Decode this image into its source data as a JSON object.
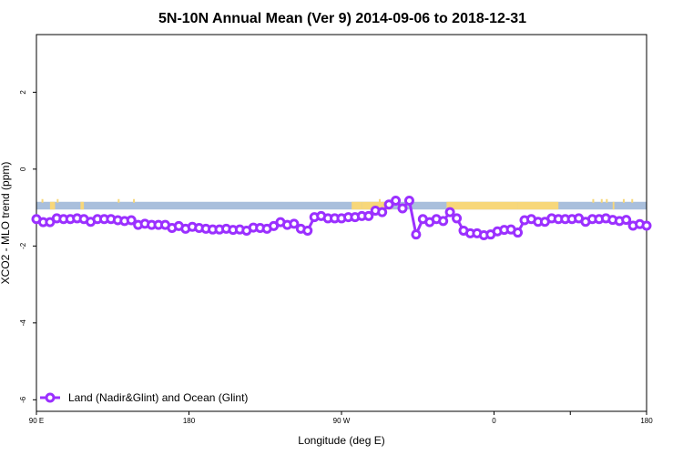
{
  "chart_data": {
    "type": "line",
    "title": "5N-10N Annual Mean (Ver 9)   2014-09-06 to 2018-12-31",
    "xlabel": "Longitude (deg E)",
    "ylabel": "XCO2 - MLO trend (ppm)",
    "xlim": [
      90,
      450
    ],
    "ylim": [
      -6.3,
      3.5
    ],
    "x_ticks": [
      {
        "value": 90,
        "label": "90 E"
      },
      {
        "value": 180,
        "label": "180"
      },
      {
        "value": 270,
        "label": "90 W"
      },
      {
        "value": 360,
        "label": "0"
      },
      {
        "value": 450,
        "label": "180"
      }
    ],
    "x_ticks_upper": [
      {
        "value": 450,
        "label": "90 E"
      }
    ],
    "y_ticks": [
      -6,
      -4,
      -2,
      0,
      2
    ],
    "land_band": {
      "y_range": [
        -1.05,
        -0.85
      ],
      "ocean_color": "#a9bfdc",
      "land_color": "#f7d77a"
    },
    "legend": {
      "position": "bottom-left",
      "label": "Land (Nadir&Glint) and Ocean (Glint)"
    },
    "series": [
      {
        "name": "Land (Nadir&Glint) and Ocean (Glint)",
        "color": "#9b30ff",
        "x": [
          90,
          94,
          98,
          102,
          106,
          110,
          114,
          118,
          122,
          126,
          130,
          134,
          138,
          142,
          146,
          150,
          154,
          158,
          162,
          166,
          170,
          174,
          178,
          182,
          186,
          190,
          194,
          198,
          202,
          206,
          210,
          214,
          218,
          222,
          226,
          230,
          234,
          238,
          242,
          246,
          250,
          254,
          258,
          262,
          266,
          270,
          274,
          278,
          282,
          286,
          290,
          294,
          298,
          302,
          306,
          310,
          314,
          318,
          322,
          326,
          330,
          334,
          338,
          342,
          346,
          350,
          354,
          358,
          362,
          366,
          370,
          374,
          378,
          382,
          386,
          390,
          394,
          398,
          402,
          406,
          410,
          414,
          418,
          422,
          426,
          430,
          434,
          438,
          442,
          446,
          450
        ],
        "y": [
          -1.3,
          -1.38,
          -1.38,
          -1.28,
          -1.3,
          -1.3,
          -1.28,
          -1.3,
          -1.37,
          -1.3,
          -1.3,
          -1.3,
          -1.33,
          -1.35,
          -1.33,
          -1.45,
          -1.42,
          -1.45,
          -1.45,
          -1.45,
          -1.53,
          -1.48,
          -1.55,
          -1.5,
          -1.53,
          -1.55,
          -1.57,
          -1.57,
          -1.55,
          -1.58,
          -1.57,
          -1.6,
          -1.52,
          -1.53,
          -1.55,
          -1.48,
          -1.38,
          -1.45,
          -1.42,
          -1.55,
          -1.6,
          -1.25,
          -1.22,
          -1.28,
          -1.28,
          -1.28,
          -1.25,
          -1.25,
          -1.22,
          -1.22,
          -1.08,
          -1.12,
          -0.92,
          -0.82,
          -1.02,
          -0.82,
          -1.7,
          -1.3,
          -1.38,
          -1.3,
          -1.35,
          -1.12,
          -1.28,
          -1.6,
          -1.67,
          -1.67,
          -1.72,
          -1.7,
          -1.62,
          -1.58,
          -1.57,
          -1.65,
          -1.33,
          -1.3,
          -1.37,
          -1.37,
          -1.28,
          -1.3,
          -1.3,
          -1.3,
          -1.28,
          -1.37,
          -1.3,
          -1.3,
          -1.28,
          -1.32,
          -1.35,
          -1.32,
          -1.47,
          -1.43,
          -1.47
        ]
      }
    ]
  }
}
